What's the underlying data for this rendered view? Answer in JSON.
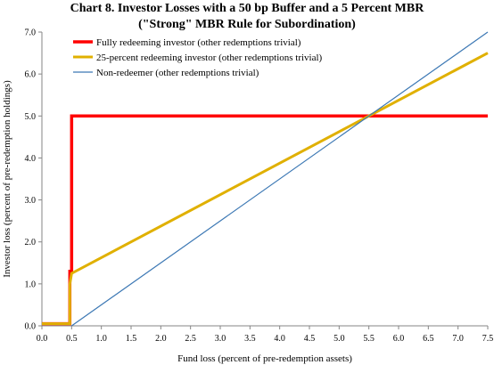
{
  "chart_data": {
    "type": "line",
    "title_line1": "Chart 8. Investor Losses with a 50 bp Buffer and a 5 Percent MBR",
    "title_line2": "(\"Strong\" MBR Rule for Subordination)",
    "xlabel": "Fund loss (percent of pre-redemption assets)",
    "ylabel": "Investor loss (percent of pre-redemption holdings)",
    "xlim": [
      0.0,
      7.5
    ],
    "ylim": [
      0.0,
      7.0
    ],
    "x_ticks": [
      "0.0",
      "0.5",
      "1.0",
      "1.5",
      "2.0",
      "2.5",
      "3.0",
      "3.5",
      "4.0",
      "4.5",
      "5.0",
      "5.5",
      "6.0",
      "6.5",
      "7.0",
      "7.5"
    ],
    "y_ticks": [
      "0.0",
      "1.0",
      "2.0",
      "3.0",
      "4.0",
      "5.0",
      "6.0",
      "7.0"
    ],
    "grid": false,
    "legend_position": "top-left",
    "series": [
      {
        "name": "Fully redeeming investor (other redemptions trivial)",
        "color": "#ff0000",
        "points": [
          [
            0.0,
            0.05
          ],
          [
            0.47,
            0.05
          ],
          [
            0.47,
            1.3
          ],
          [
            0.5,
            1.3
          ],
          [
            0.5,
            5.0
          ],
          [
            7.5,
            5.0
          ]
        ]
      },
      {
        "name": "25-percent redeeming investor (other redemptions trivial)",
        "color": "#e0b000",
        "points": [
          [
            0.0,
            0.05
          ],
          [
            0.47,
            0.05
          ],
          [
            0.47,
            1.0
          ],
          [
            0.5,
            1.25
          ],
          [
            7.5,
            6.5
          ]
        ]
      },
      {
        "name": "Non-redeemer (other redemptions trivial)",
        "color": "#3c78b4",
        "points": [
          [
            0.5,
            0.0
          ],
          [
            7.5,
            7.0
          ]
        ]
      }
    ]
  }
}
